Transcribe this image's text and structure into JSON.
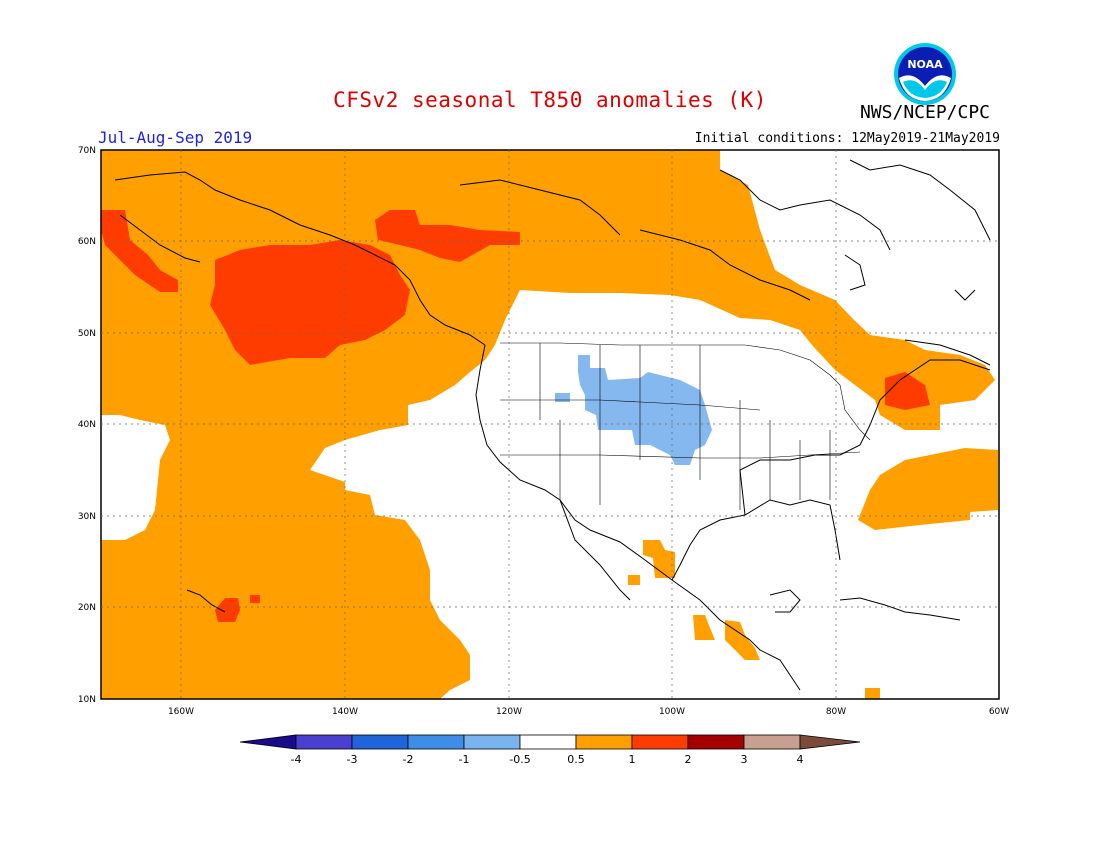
{
  "header": {
    "title": "CFSv2 seasonal T850 anomalies (K)",
    "agency": "NWS/NCEP/CPC",
    "season": "Jul-Aug-Sep 2019",
    "initial_conditions": "Initial conditions: 12May2019-21May2019",
    "logo_text": "NOAA"
  },
  "axes": {
    "lat_labels": [
      "70N",
      "60N",
      "50N",
      "40N",
      "30N",
      "20N",
      "10N"
    ],
    "lon_labels": [
      "160W",
      "140W",
      "120W",
      "100W",
      "80W",
      "60W"
    ]
  },
  "colorbar": {
    "labels": [
      "-4",
      "-3",
      "-2",
      "-1",
      "-0.5",
      "0.5",
      "1",
      "2",
      "3",
      "4"
    ],
    "colors": [
      "#1a0a8c",
      "#4b3fd0",
      "#1f64d8",
      "#3e8ee8",
      "#7ab4f0",
      "#ffffff",
      "#ffa000",
      "#ff3c00",
      "#a50000",
      "#c8a090",
      "#7a4a3a"
    ]
  },
  "palette": {
    "anom_1": "#ffa000",
    "anom_2": "#ff3c00",
    "cold_1": "#86b8f0",
    "coast": "#000000"
  }
}
